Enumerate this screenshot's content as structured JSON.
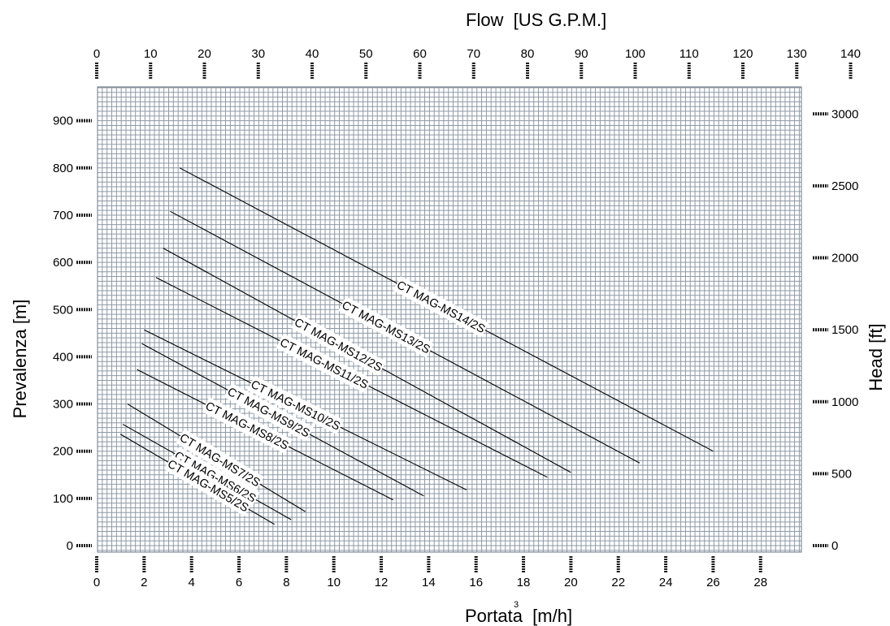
{
  "chart_data": {
    "type": "line",
    "title": "",
    "xlabel": "Portata  [m/h]",
    "xlabel_superscript": "3",
    "ylabel": "Prevalenza [m]",
    "x2label": "Flow  [US G.P.M.]",
    "y2label": "Head [ft]",
    "xlim": [
      0,
      29.6
    ],
    "ylim": [
      0,
      970
    ],
    "x_ticks": [
      0,
      2,
      4,
      6,
      8,
      10,
      12,
      14,
      16,
      18,
      20,
      22,
      24,
      26,
      28
    ],
    "y_ticks": [
      0,
      100,
      200,
      300,
      400,
      500,
      600,
      700,
      800,
      900
    ],
    "x2_ticks": [
      0,
      10,
      20,
      30,
      40,
      50,
      60,
      70,
      80,
      90,
      100,
      110,
      120,
      130,
      140
    ],
    "y2_ticks": [
      0,
      500,
      1000,
      1500,
      2000,
      2500,
      3000
    ],
    "grid": true,
    "legend": "none (inline labels)",
    "series": [
      {
        "name": "CT MAG-MS14/2S",
        "x": [
          3.5,
          26.0
        ],
        "y": [
          800,
          200
        ]
      },
      {
        "name": "CT MAG-MS13/2S",
        "x": [
          3.1,
          22.9
        ],
        "y": [
          708,
          175
        ]
      },
      {
        "name": "CT MAG-MS12/2S",
        "x": [
          2.8,
          20.0
        ],
        "y": [
          630,
          155
        ]
      },
      {
        "name": "CT MAG-MS11/2S",
        "x": [
          2.5,
          19.0
        ],
        "y": [
          568,
          145
        ]
      },
      {
        "name": "CT MAG-MS10/2S",
        "x": [
          2.0,
          15.6
        ],
        "y": [
          457,
          118
        ]
      },
      {
        "name": "CT MAG-MS9/2S",
        "x": [
          1.9,
          13.8
        ],
        "y": [
          428,
          105
        ]
      },
      {
        "name": "CT MAG-MS8/2S",
        "x": [
          1.7,
          12.5
        ],
        "y": [
          373,
          97
        ]
      },
      {
        "name": "CT MAG-MS7/2S",
        "x": [
          1.3,
          8.8
        ],
        "y": [
          300,
          72
        ]
      },
      {
        "name": "CT MAG-MS6/2S",
        "x": [
          1.1,
          8.2
        ],
        "y": [
          257,
          55
        ]
      },
      {
        "name": "CT MAG-MS5/2S",
        "x": [
          1.0,
          7.5
        ],
        "y": [
          236,
          45
        ]
      }
    ]
  }
}
